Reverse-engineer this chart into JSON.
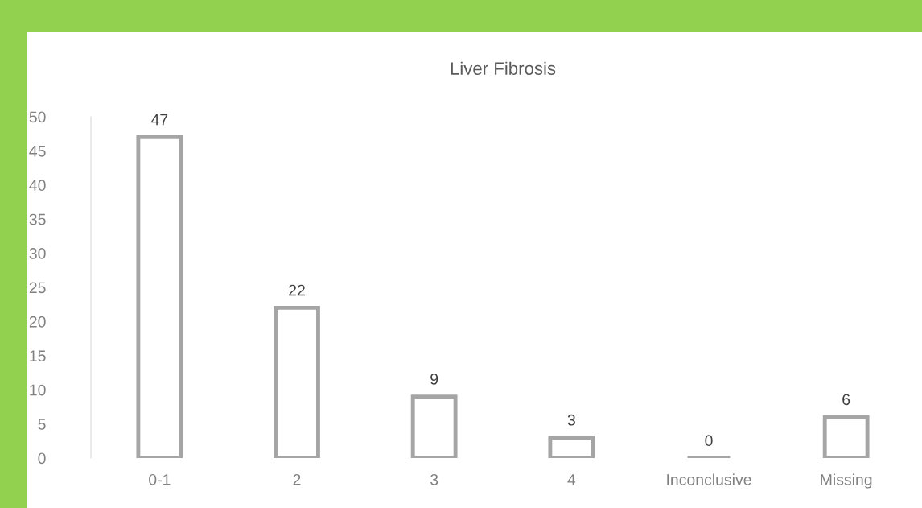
{
  "chart_data": {
    "type": "bar",
    "title": "Liver Fibrosis",
    "categories": [
      "0-1",
      "2",
      "3",
      "4",
      "Inconclusive",
      "Missing"
    ],
    "values": [
      47,
      22,
      9,
      3,
      0,
      6
    ],
    "color": "#a5a5a5",
    "ylim": [
      0,
      50
    ],
    "yticks": [
      0,
      5,
      10,
      15,
      20,
      25,
      30,
      35,
      40,
      45,
      50
    ],
    "grid": false,
    "legend": false,
    "data_labels": true
  }
}
